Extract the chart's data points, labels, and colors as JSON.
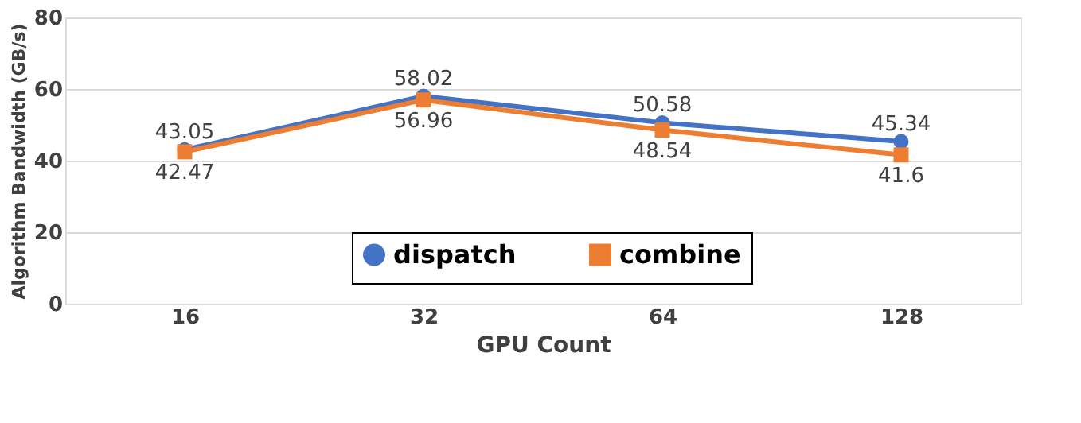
{
  "chart_data": {
    "type": "line",
    "xlabel": "GPU Count",
    "ylabel": "Algorithm Bandwidth (GB/s)",
    "categories": [
      "16",
      "32",
      "64",
      "128"
    ],
    "series": [
      {
        "name": "dispatch",
        "color": "#4472c4",
        "values": [
          43.05,
          58.02,
          50.58,
          45.34
        ],
        "marker": "circle"
      },
      {
        "name": "combine",
        "color": "#ed7d31",
        "values": [
          42.47,
          56.96,
          48.54,
          41.6
        ],
        "marker": "square"
      }
    ],
    "ylim": [
      0,
      80
    ],
    "yticks": [
      0,
      20,
      40,
      60,
      80
    ],
    "grid": "y",
    "legend": "bottom",
    "data_labels": true,
    "line_style": "solid"
  }
}
